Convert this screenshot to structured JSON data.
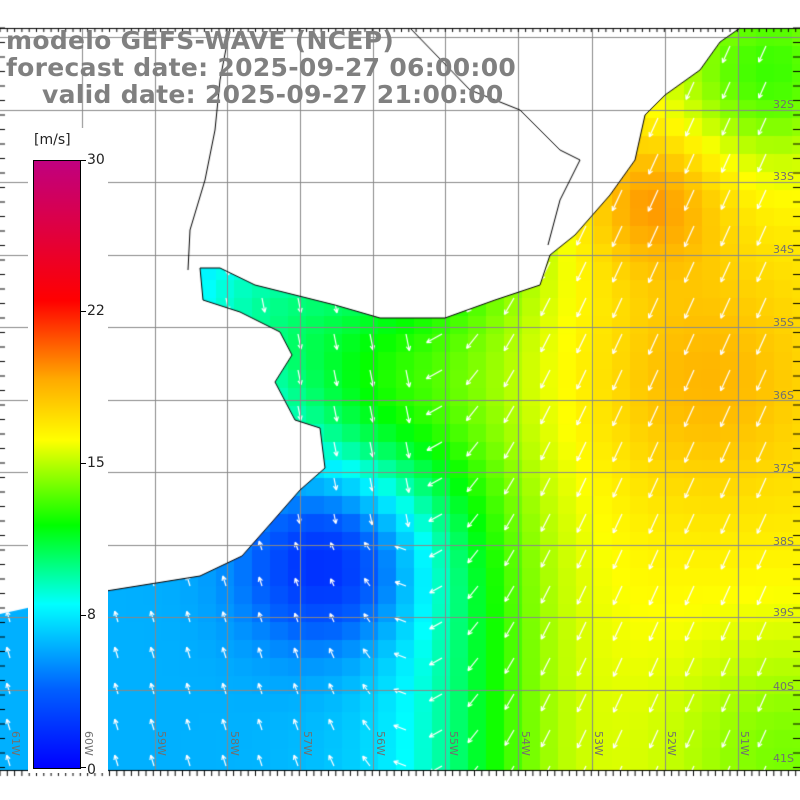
{
  "title": {
    "line1": "modelo GEFS-WAVE (NCEP)",
    "line2": "forecast date: 2025-09-27 06:00:00",
    "line3": "valid date: 2025-09-27 21:00:00"
  },
  "colorbar": {
    "unit": "[m/s]",
    "labels": [
      "30",
      "22",
      "15",
      "8",
      "0"
    ],
    "min": 0,
    "max": 30
  },
  "lat_labels": [
    "32S",
    "33S",
    "34S",
    "35S",
    "36S",
    "37S",
    "38S",
    "39S",
    "40S",
    "41S"
  ],
  "lon_labels": [
    "61W",
    "60W",
    "59W",
    "58W",
    "57W",
    "56W",
    "55W",
    "54W",
    "53W",
    "52W",
    "51W"
  ],
  "colors": {
    "grid": "#888888",
    "land": "#ffffff",
    "coast": "#000000",
    "arrow": "#ffffff"
  }
}
